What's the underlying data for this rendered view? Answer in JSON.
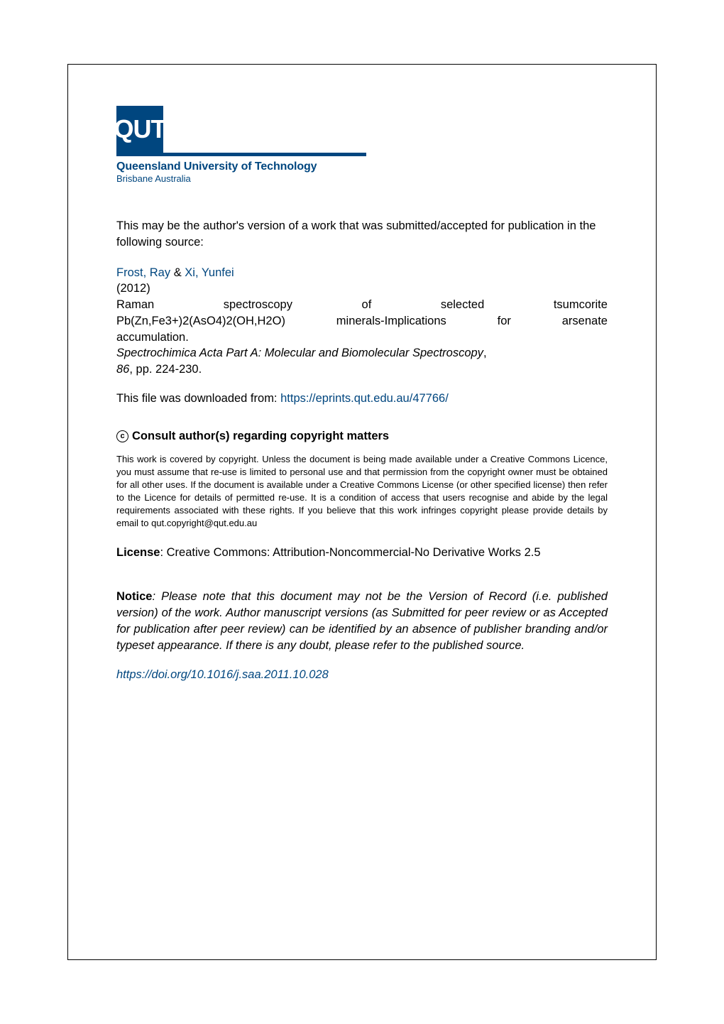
{
  "logo": {
    "text": "QUT",
    "institution": "Queensland University of Technology",
    "location": "Brisbane Australia",
    "bg_color": "#00467f",
    "text_color": "#ffffff"
  },
  "intro": "This may be the author's version of a work that was submitted/accepted for publication in the following source:",
  "citation": {
    "author1": "Frost, Ray",
    "author_sep": " & ",
    "author2": "Xi, Yunfei",
    "year": "(2012)",
    "title_line1": "Raman spectroscopy of selected tsumcorite",
    "title_line2": "Pb(Zn,Fe3+)2(AsO4)2(OH,H2O) minerals-Implications for arsenate",
    "title_line3": "accumulation.",
    "journal": "Spectrochimica Acta Part A: Molecular and Biomolecular Spectroscopy",
    "journal_sep": ",",
    "volume": "86",
    "pages": ", pp. 224-230."
  },
  "download": {
    "prefix": "This file was downloaded from: ",
    "url": "https://eprints.qut.edu.au/47766/"
  },
  "copyright": {
    "symbol": "c",
    "heading": "Consult author(s) regarding copyright matters",
    "body": "This work is covered by copyright. Unless the document is being made available under a Creative Commons Licence, you must assume that re-use is limited to personal use and that permission from the copyright owner must be obtained for all other uses. If the document is available under a Creative Commons License (or other specified license) then refer to the Licence for details of permitted re-use. It is a condition of access that users recognise and abide by the legal requirements associated with these rights. If you believe that this work infringes copyright please provide details by email to qut.copyright@qut.edu.au"
  },
  "license": {
    "label": "License",
    "text": ": Creative Commons: Attribution-Noncommercial-No Derivative Works 2.5"
  },
  "notice": {
    "label": "Notice",
    "text": ": Please note that this document may not be the Version of Record (i.e. published version) of the work. Author manuscript versions (as Submitted for peer review or as Accepted for publication after peer review) can be identified by an absence of publisher branding and/or typeset appearance. If there is any doubt, please refer to the published source."
  },
  "doi": {
    "url": "https://doi.org/10.1016/j.saa.2011.10.028"
  },
  "colors": {
    "primary": "#00467f",
    "text": "#000000",
    "background": "#ffffff"
  }
}
